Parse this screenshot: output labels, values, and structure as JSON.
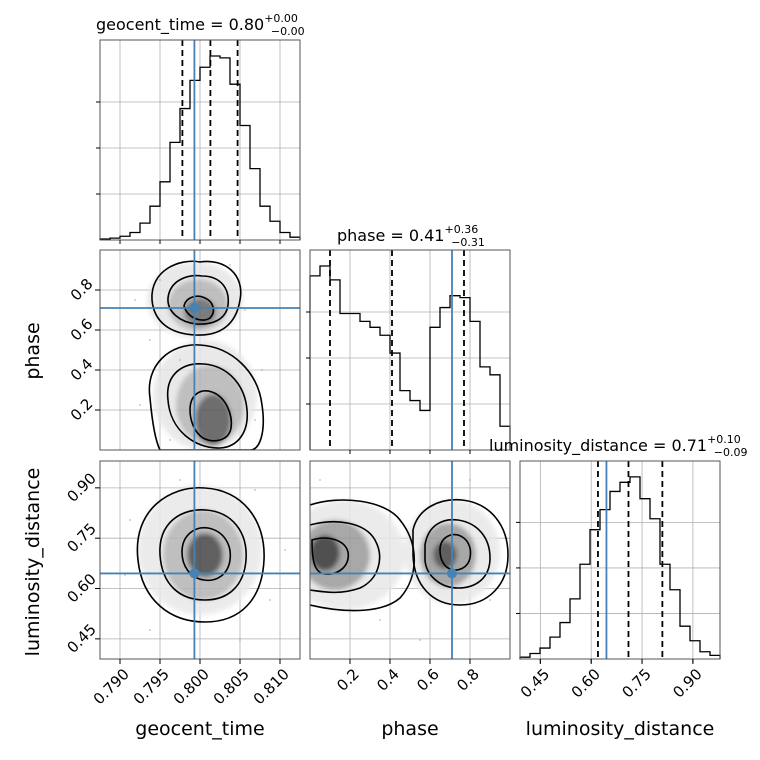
{
  "chart_data": {
    "type": "corner",
    "parameters": [
      "geocent_time",
      "phase",
      "luminosity_distance"
    ],
    "panel_titles": {
      "geocent_time": {
        "name": "geocent_time",
        "median": "0.80",
        "plus": "+0.00",
        "minus": "−0.00"
      },
      "phase": {
        "name": "phase",
        "median": "0.41",
        "plus": "+0.36",
        "minus": "−0.31"
      },
      "luminosity_distance": {
        "name": "luminosity_distance",
        "median": "0.71",
        "plus": "+0.10",
        "minus": "−0.09"
      }
    },
    "axes": {
      "geocent_time": {
        "range": [
          0.7875,
          0.8125
        ],
        "ticks": [
          0.79,
          0.795,
          0.8,
          0.805,
          0.81
        ],
        "tick_labels": [
          "0.790",
          "0.795",
          "0.800",
          "0.805",
          "0.810"
        ]
      },
      "phase": {
        "range": [
          0.0,
          1.0
        ],
        "ticks": [
          0.2,
          0.4,
          0.6,
          0.8
        ],
        "tick_labels": [
          "0.2",
          "0.4",
          "0.6",
          "0.8"
        ]
      },
      "luminosity_distance": {
        "range": [
          0.39,
          0.98
        ],
        "ticks": [
          0.45,
          0.6,
          0.75,
          0.9
        ],
        "tick_labels": [
          "0.45",
          "0.60",
          "0.75",
          "0.90"
        ]
      }
    },
    "truths": {
      "geocent_time": 0.7993,
      "phase": 0.71,
      "luminosity_distance": 0.645
    },
    "quantiles": {
      "geocent_time": [
        0.7978,
        0.8013,
        0.8047
      ],
      "phase": [
        0.1,
        0.41,
        0.77
      ],
      "luminosity_distance": [
        0.62,
        0.71,
        0.81
      ]
    },
    "histograms": {
      "geocent_time": {
        "edges": [
          0.7875,
          0.78875,
          0.79,
          0.79125,
          0.7925,
          0.79375,
          0.795,
          0.79625,
          0.7975,
          0.79875,
          0.8,
          0.80125,
          0.8025,
          0.80375,
          0.805,
          0.80625,
          0.8075,
          0.80875,
          0.81,
          0.81125,
          0.8125
        ],
        "counts": [
          0.005,
          0.01,
          0.02,
          0.04,
          0.09,
          0.18,
          0.31,
          0.52,
          0.7,
          0.85,
          0.92,
          0.98,
          0.97,
          0.83,
          0.61,
          0.38,
          0.18,
          0.1,
          0.04,
          0.015
        ]
      },
      "phase": {
        "edges": [
          0.0,
          0.05,
          0.1,
          0.15,
          0.2,
          0.25,
          0.3,
          0.35,
          0.4,
          0.45,
          0.5,
          0.55,
          0.6,
          0.65,
          0.7,
          0.75,
          0.8,
          0.85,
          0.9,
          0.95,
          1.0
        ],
        "counts": [
          0.88,
          0.93,
          0.86,
          0.69,
          0.69,
          0.65,
          0.62,
          0.58,
          0.49,
          0.3,
          0.25,
          0.2,
          0.62,
          0.72,
          0.78,
          0.77,
          0.65,
          0.42,
          0.38,
          0.12
        ]
      },
      "luminosity_distance": {
        "edges": [
          0.39,
          0.4195,
          0.449,
          0.4785,
          0.508,
          0.5375,
          0.567,
          0.5965,
          0.626,
          0.6555,
          0.685,
          0.7145,
          0.744,
          0.7735,
          0.803,
          0.8325,
          0.862,
          0.8915,
          0.921,
          0.9505,
          0.98
        ],
        "counts": [
          0.01,
          0.03,
          0.06,
          0.12,
          0.2,
          0.33,
          0.52,
          0.71,
          0.82,
          0.92,
          0.97,
          1.0,
          0.88,
          0.77,
          0.52,
          0.38,
          0.18,
          0.1,
          0.04,
          0.02
        ]
      }
    },
    "grid": true,
    "contour_colormap": "grey",
    "colors": {
      "truth": "#4682b4",
      "line": "#000000",
      "grid": "#b0b0b0"
    }
  }
}
